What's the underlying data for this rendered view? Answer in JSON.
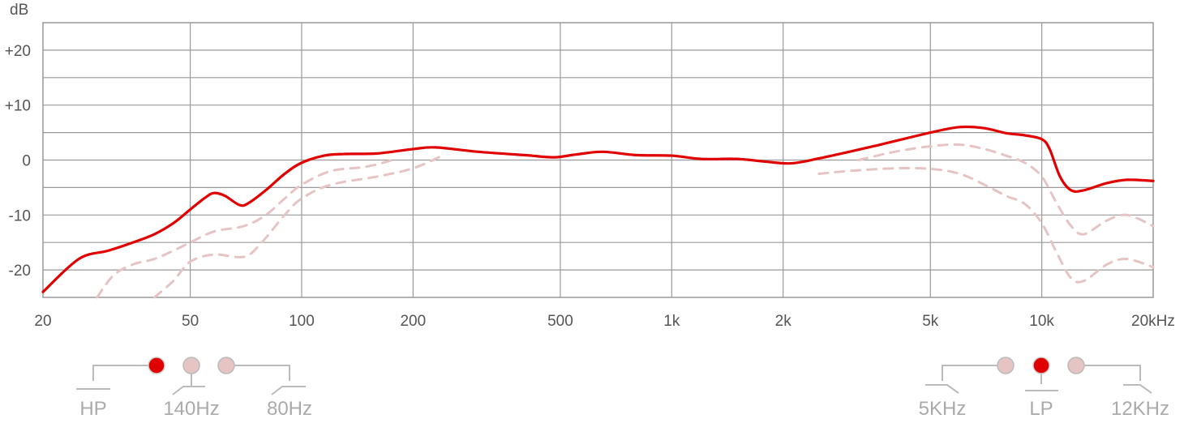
{
  "chart_data": {
    "type": "line",
    "ylabel": "dB",
    "xscale": "log",
    "xlim": [
      20,
      20000
    ],
    "ylim": [
      -25,
      25
    ],
    "grid": true,
    "x_ticks": [
      {
        "value": 20,
        "label": "20"
      },
      {
        "value": 50,
        "label": "50"
      },
      {
        "value": 100,
        "label": "100"
      },
      {
        "value": 200,
        "label": "200"
      },
      {
        "value": 500,
        "label": "500"
      },
      {
        "value": 1000,
        "label": "1k"
      },
      {
        "value": 2000,
        "label": "2k"
      },
      {
        "value": 5000,
        "label": "5k"
      },
      {
        "value": 10000,
        "label": "10k"
      },
      {
        "value": 20000,
        "label": "20kHz"
      }
    ],
    "y_ticks": [
      {
        "value": 20,
        "label": "+20"
      },
      {
        "value": 10,
        "label": "+10"
      },
      {
        "value": 0,
        "label": "0"
      },
      {
        "value": -10,
        "label": "-10"
      },
      {
        "value": -20,
        "label": "-20"
      }
    ],
    "series": [
      {
        "style": "solid",
        "color": "#e00000",
        "points": [
          [
            20,
            -24
          ],
          [
            25,
            -18
          ],
          [
            30,
            -16.5
          ],
          [
            35,
            -15
          ],
          [
            40,
            -13.5
          ],
          [
            45,
            -11.5
          ],
          [
            50,
            -9
          ],
          [
            55,
            -6.8
          ],
          [
            58,
            -6
          ],
          [
            62,
            -6.5
          ],
          [
            68,
            -8.2
          ],
          [
            72,
            -7.8
          ],
          [
            80,
            -5.5
          ],
          [
            90,
            -2.5
          ],
          [
            100,
            -0.5
          ],
          [
            115,
            0.8
          ],
          [
            130,
            1.1
          ],
          [
            160,
            1.2
          ],
          [
            200,
            2.0
          ],
          [
            230,
            2.3
          ],
          [
            300,
            1.5
          ],
          [
            400,
            0.9
          ],
          [
            480,
            0.5
          ],
          [
            550,
            1.0
          ],
          [
            650,
            1.5
          ],
          [
            800,
            0.9
          ],
          [
            1000,
            0.8
          ],
          [
            1200,
            0.2
          ],
          [
            1500,
            0.2
          ],
          [
            1800,
            -0.3
          ],
          [
            2100,
            -0.6
          ],
          [
            2500,
            0.3
          ],
          [
            3500,
            2.5
          ],
          [
            5000,
            5.0
          ],
          [
            6000,
            6.0
          ],
          [
            7000,
            5.8
          ],
          [
            8000,
            4.9
          ],
          [
            9000,
            4.5
          ],
          [
            10000,
            3.8
          ],
          [
            10500,
            2
          ],
          [
            11200,
            -3
          ],
          [
            12000,
            -5.5
          ],
          [
            13000,
            -5.5
          ],
          [
            15000,
            -4.2
          ],
          [
            17000,
            -3.6
          ],
          [
            20000,
            -3.8
          ]
        ]
      },
      {
        "style": "dashed",
        "color": "#e6c4c4",
        "points": [
          [
            28,
            -25
          ],
          [
            31,
            -21
          ],
          [
            35,
            -19
          ],
          [
            40,
            -18
          ],
          [
            45,
            -16.5
          ],
          [
            50,
            -15
          ],
          [
            58,
            -13
          ],
          [
            70,
            -12
          ],
          [
            80,
            -10
          ],
          [
            90,
            -7
          ],
          [
            100,
            -4.5
          ],
          [
            120,
            -2
          ],
          [
            150,
            -1.2
          ],
          [
            180,
            0.2
          ]
        ]
      },
      {
        "style": "dashed",
        "color": "#e6c4c4",
        "points": [
          [
            40,
            -25
          ],
          [
            45,
            -22
          ],
          [
            50,
            -18.5
          ],
          [
            58,
            -17.2
          ],
          [
            70,
            -17.6
          ],
          [
            78,
            -15
          ],
          [
            90,
            -10
          ],
          [
            100,
            -7
          ],
          [
            120,
            -4.5
          ],
          [
            160,
            -3
          ],
          [
            200,
            -1.5
          ],
          [
            240,
            0.8
          ]
        ]
      },
      {
        "style": "dashed",
        "color": "#e6c4c4",
        "points": [
          [
            3200,
            0
          ],
          [
            4000,
            1.5
          ],
          [
            5000,
            2.5
          ],
          [
            6000,
            2.8
          ],
          [
            7000,
            2.0
          ],
          [
            8000,
            0.8
          ],
          [
            9000,
            -0.5
          ],
          [
            10000,
            -3
          ],
          [
            11000,
            -8
          ],
          [
            12000,
            -12
          ],
          [
            13000,
            -13.5
          ],
          [
            15000,
            -11
          ],
          [
            17000,
            -10
          ],
          [
            20000,
            -12
          ]
        ]
      },
      {
        "style": "dashed",
        "color": "#e6c4c4",
        "points": [
          [
            2500,
            -2.5
          ],
          [
            3000,
            -2
          ],
          [
            4000,
            -1.5
          ],
          [
            5000,
            -1.6
          ],
          [
            6000,
            -2.5
          ],
          [
            7000,
            -4.5
          ],
          [
            8000,
            -6.5
          ],
          [
            9000,
            -8
          ],
          [
            10000,
            -11.5
          ],
          [
            11000,
            -17
          ],
          [
            12000,
            -21.5
          ],
          [
            13000,
            -22
          ],
          [
            15000,
            -19
          ],
          [
            17000,
            -18
          ],
          [
            20000,
            -19.5
          ]
        ]
      }
    ]
  },
  "controls": {
    "highpass": {
      "labels": [
        "HP",
        "140Hz",
        "80Hz"
      ],
      "active_index": 0
    },
    "lowpass": {
      "labels": [
        "5KHz",
        "LP",
        "12KHz"
      ],
      "active_index": 1
    },
    "active_color": "#e00000",
    "inactive_color": "#e6c4c4"
  }
}
